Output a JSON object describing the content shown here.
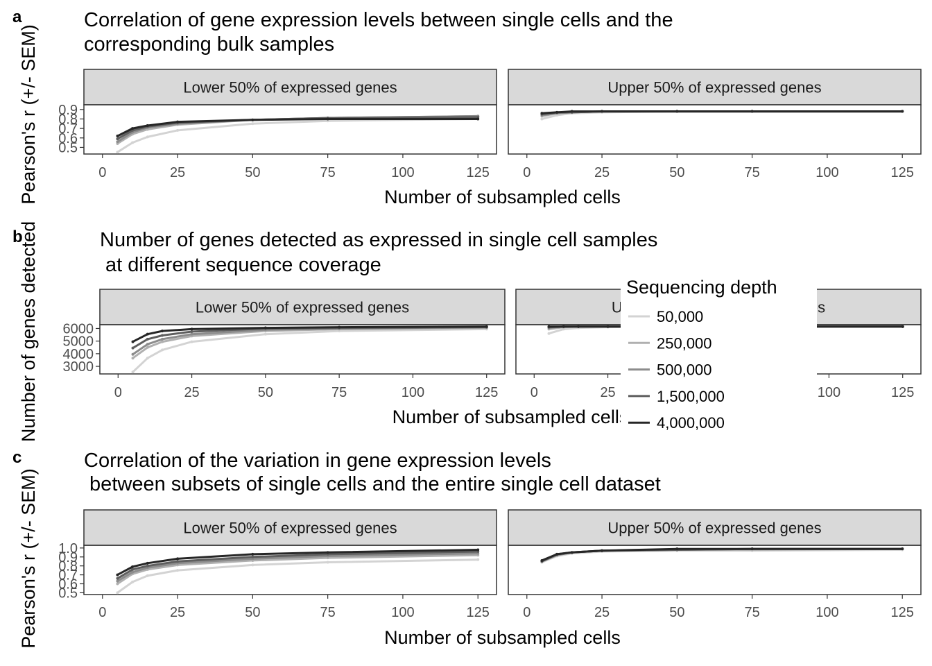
{
  "chart_data": [
    {
      "id": "a",
      "panel_letter": "a",
      "type": "line",
      "title_lines": [
        "Correlation of gene expression levels between single cells and the",
        "corresponding bulk samples"
      ],
      "xlabel": "Number of subsampled cells",
      "ylabel": "Pearson's r (+/- SEM)",
      "xlim": [
        0,
        125
      ],
      "ylim": [
        0.43,
        0.95
      ],
      "x_ticks": [
        0,
        25,
        50,
        75,
        100,
        125
      ],
      "y_ticks": [
        0.5,
        0.6,
        0.7,
        0.8,
        0.9
      ],
      "y_tick_labels": [
        "0.5",
        "0.6",
        "0.7",
        "0.8",
        "0.9"
      ],
      "x": [
        5,
        10,
        15,
        25,
        50,
        75,
        125
      ],
      "facets": [
        {
          "label": "Lower 50% of expressed genes",
          "series": [
            {
              "name": "50,000",
              "values": [
                0.45,
                0.55,
                0.61,
                0.68,
                0.75,
                0.78,
                0.8
              ]
            },
            {
              "name": "250,000",
              "values": [
                0.54,
                0.64,
                0.69,
                0.74,
                0.79,
                0.81,
                0.83
              ]
            },
            {
              "name": "500,000",
              "values": [
                0.56,
                0.66,
                0.71,
                0.75,
                0.79,
                0.81,
                0.83
              ]
            },
            {
              "name": "1,500,000",
              "values": [
                0.59,
                0.68,
                0.72,
                0.76,
                0.79,
                0.81,
                0.82
              ]
            },
            {
              "name": "4,000,000",
              "values": [
                0.62,
                0.7,
                0.73,
                0.77,
                0.79,
                0.8,
                0.8
              ]
            }
          ]
        },
        {
          "label": "Upper 50% of expressed genes",
          "series": [
            {
              "name": "50,000",
              "values": [
                0.8,
                0.84,
                0.86,
                0.87,
                0.88,
                0.88,
                0.88
              ]
            },
            {
              "name": "250,000",
              "values": [
                0.83,
                0.86,
                0.87,
                0.88,
                0.88,
                0.88,
                0.88
              ]
            },
            {
              "name": "500,000",
              "values": [
                0.84,
                0.86,
                0.87,
                0.88,
                0.88,
                0.88,
                0.88
              ]
            },
            {
              "name": "1,500,000",
              "values": [
                0.85,
                0.87,
                0.87,
                0.88,
                0.88,
                0.88,
                0.88
              ]
            },
            {
              "name": "4,000,000",
              "values": [
                0.86,
                0.87,
                0.88,
                0.88,
                0.88,
                0.88,
                0.88
              ]
            }
          ]
        }
      ]
    },
    {
      "id": "b",
      "panel_letter": "b",
      "type": "line",
      "title_lines": [
        "Number of genes detected as expressed in single cell samples",
        " at different sequence coverage"
      ],
      "xlabel": "Number of subsampled cells",
      "ylabel": "Number of genes detected",
      "xlim": [
        0,
        125
      ],
      "ylim": [
        2400,
        6300
      ],
      "x_ticks": [
        0,
        25,
        50,
        75,
        100,
        125
      ],
      "y_ticks": [
        3000,
        4000,
        5000,
        6000
      ],
      "y_tick_labels": [
        "3000",
        "4000",
        "5000",
        "6000"
      ],
      "x": [
        5,
        10,
        15,
        25,
        50,
        75,
        125
      ],
      "facets": [
        {
          "label": "Lower 50% of expressed genes",
          "series": [
            {
              "name": "50,000",
              "values": [
                2550,
                3650,
                4300,
                4950,
                5550,
                5800,
                5950
              ]
            },
            {
              "name": "250,000",
              "values": [
                3650,
                4500,
                4950,
                5400,
                5800,
                5950,
                6050
              ]
            },
            {
              "name": "500,000",
              "values": [
                3950,
                4750,
                5150,
                5550,
                5900,
                6000,
                6100
              ]
            },
            {
              "name": "1,500,000",
              "values": [
                4450,
                5150,
                5450,
                5750,
                6000,
                6050,
                6100
              ]
            },
            {
              "name": "4,000,000",
              "values": [
                4950,
                5550,
                5800,
                5950,
                6050,
                6100,
                6150
              ]
            }
          ]
        },
        {
          "label": "Upper 50% of expressed genes",
          "series": [
            {
              "name": "50,000",
              "values": [
                5600,
                5950,
                6050,
                6100,
                6150,
                6150,
                6150
              ]
            },
            {
              "name": "250,000",
              "values": [
                5950,
                6100,
                6150,
                6150,
                6150,
                6150,
                6150
              ]
            },
            {
              "name": "500,000",
              "values": [
                6050,
                6150,
                6150,
                6150,
                6150,
                6150,
                6150
              ]
            },
            {
              "name": "1,500,000",
              "values": [
                6100,
                6150,
                6150,
                6150,
                6150,
                6150,
                6150
              ]
            },
            {
              "name": "4,000,000",
              "values": [
                6150,
                6150,
                6150,
                6150,
                6150,
                6150,
                6150
              ]
            }
          ]
        }
      ]
    },
    {
      "id": "c",
      "panel_letter": "c",
      "type": "line",
      "title_lines": [
        "Correlation of the variation in gene expression levels",
        " between subsets of single cells and the entire single cell dataset"
      ],
      "xlabel": "Number of subsampled cells",
      "ylabel": "Pearson's r (+/- SEM)",
      "xlim": [
        0,
        125
      ],
      "ylim": [
        0.48,
        1.03
      ],
      "x_ticks": [
        0,
        25,
        50,
        75,
        100,
        125
      ],
      "y_ticks": [
        0.5,
        0.6,
        0.7,
        0.8,
        0.9,
        1.0
      ],
      "y_tick_labels": [
        "0.5",
        "0.6",
        "0.7",
        "0.8",
        "0.9",
        "1.0"
      ],
      "x": [
        5,
        10,
        15,
        25,
        50,
        75,
        125
      ],
      "facets": [
        {
          "label": "Lower 50% of expressed genes",
          "series": [
            {
              "name": "50,000",
              "values": [
                0.5,
                0.62,
                0.69,
                0.75,
                0.81,
                0.84,
                0.87
              ]
            },
            {
              "name": "250,000",
              "values": [
                0.6,
                0.71,
                0.76,
                0.81,
                0.86,
                0.89,
                0.92
              ]
            },
            {
              "name": "500,000",
              "values": [
                0.63,
                0.73,
                0.78,
                0.83,
                0.88,
                0.91,
                0.94
              ]
            },
            {
              "name": "1,500,000",
              "values": [
                0.66,
                0.76,
                0.8,
                0.85,
                0.9,
                0.93,
                0.96
              ]
            },
            {
              "name": "4,000,000",
              "values": [
                0.7,
                0.79,
                0.83,
                0.88,
                0.93,
                0.95,
                0.98
              ]
            }
          ]
        },
        {
          "label": "Upper 50% of expressed genes",
          "series": [
            {
              "name": "50,000",
              "values": [
                0.84,
                0.91,
                0.94,
                0.96,
                0.97,
                0.97,
                0.98
              ]
            },
            {
              "name": "250,000",
              "values": [
                0.85,
                0.92,
                0.95,
                0.97,
                0.98,
                0.98,
                0.99
              ]
            },
            {
              "name": "500,000",
              "values": [
                0.85,
                0.92,
                0.95,
                0.97,
                0.98,
                0.99,
                0.99
              ]
            },
            {
              "name": "1,500,000",
              "values": [
                0.85,
                0.93,
                0.95,
                0.97,
                0.98,
                0.99,
                0.99
              ]
            },
            {
              "name": "4,000,000",
              "values": [
                0.86,
                0.93,
                0.95,
                0.97,
                0.99,
                0.99,
                0.99
              ]
            }
          ]
        }
      ]
    }
  ],
  "legend": {
    "title": "Sequencing depth",
    "position": "right, overlapping panel b",
    "items": [
      {
        "label": "50,000",
        "color": "#d3d3d3"
      },
      {
        "label": "250,000",
        "color": "#b0b0b0"
      },
      {
        "label": "500,000",
        "color": "#8c8c8c"
      },
      {
        "label": "1,500,000",
        "color": "#5e5e5e"
      },
      {
        "label": "4,000,000",
        "color": "#262626"
      }
    ]
  },
  "style": {
    "strip_fill": "#d9d9d9",
    "panel_border": "#333333",
    "tick_text_color": "#4d4d4d"
  }
}
